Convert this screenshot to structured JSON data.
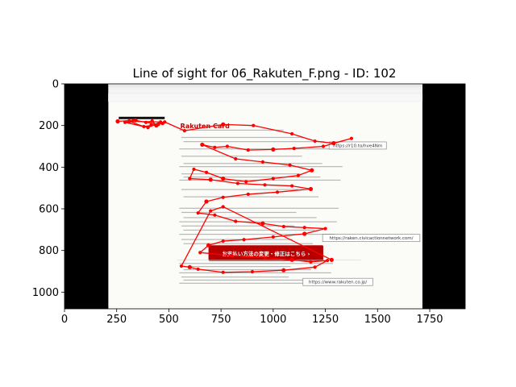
{
  "chart_data": {
    "type": "scatter",
    "title": "Line of sight for 06_Rakuten_F.png - ID: 102",
    "xlabel": "",
    "ylabel": "",
    "xlim": [
      0,
      1920
    ],
    "ylim": [
      1080,
      0
    ],
    "x_ticks": [
      0,
      250,
      500,
      750,
      1000,
      1250,
      1500,
      1750
    ],
    "y_ticks": [
      0,
      200,
      400,
      600,
      800,
      1000
    ],
    "grid": false,
    "line_color": "#ff0000",
    "marker_color": "#ff0000",
    "background_image": {
      "extent_x": [
        210,
        1715
      ],
      "extent_y": [
        0,
        1080
      ],
      "logo": "Rakuten Card",
      "button": "お支払い方法の変更・修正はこちら ›",
      "url_labels": [
        {
          "text": "https://r10.to/hve4Nm",
          "x": 1405,
          "y": 296
        },
        {
          "text": "https://raken.civicactionnetwork.com/",
          "x": 1470,
          "y": 740
        },
        {
          "text": "https://www.rakuten.co.jp/",
          "x": 1310,
          "y": 951
        }
      ]
    },
    "points": [
      [
        255,
        180
      ],
      [
        330,
        175
      ],
      [
        390,
        185
      ],
      [
        420,
        178
      ],
      [
        440,
        200
      ],
      [
        415,
        198
      ],
      [
        470,
        190
      ],
      [
        380,
        205
      ],
      [
        310,
        180
      ],
      [
        460,
        183
      ],
      [
        400,
        210
      ],
      [
        290,
        185
      ],
      [
        340,
        175
      ],
      [
        450,
        195
      ],
      [
        480,
        183
      ],
      [
        575,
        225
      ],
      [
        760,
        195
      ],
      [
        905,
        200
      ],
      [
        1090,
        240
      ],
      [
        1200,
        275
      ],
      [
        1290,
        285
      ],
      [
        1375,
        262
      ],
      [
        1240,
        300
      ],
      [
        1100,
        310
      ],
      [
        1000,
        315
      ],
      [
        880,
        318
      ],
      [
        780,
        300
      ],
      [
        720,
        305
      ],
      [
        660,
        292
      ],
      [
        820,
        360
      ],
      [
        950,
        375
      ],
      [
        1080,
        390
      ],
      [
        1185,
        415
      ],
      [
        1120,
        440
      ],
      [
        1000,
        455
      ],
      [
        870,
        470
      ],
      [
        760,
        455
      ],
      [
        680,
        425
      ],
      [
        620,
        410
      ],
      [
        600,
        455
      ],
      [
        700,
        460
      ],
      [
        830,
        478
      ],
      [
        960,
        485
      ],
      [
        1090,
        490
      ],
      [
        1180,
        505
      ],
      [
        1020,
        520
      ],
      [
        880,
        530
      ],
      [
        760,
        545
      ],
      [
        680,
        565
      ],
      [
        640,
        620
      ],
      [
        720,
        630
      ],
      [
        820,
        660
      ],
      [
        950,
        670
      ],
      [
        1050,
        685
      ],
      [
        1150,
        690
      ],
      [
        1250,
        695
      ],
      [
        1150,
        720
      ],
      [
        1000,
        735
      ],
      [
        860,
        748
      ],
      [
        760,
        755
      ],
      [
        690,
        775
      ],
      [
        650,
        810
      ],
      [
        800,
        825
      ],
      [
        960,
        835
      ],
      [
        1090,
        845
      ],
      [
        1180,
        855
      ],
      [
        1260,
        848
      ],
      [
        1200,
        880
      ],
      [
        1050,
        895
      ],
      [
        900,
        902
      ],
      [
        760,
        905
      ],
      [
        640,
        890
      ],
      [
        600,
        880
      ],
      [
        560,
        875
      ],
      [
        700,
        610
      ],
      [
        760,
        590
      ],
      [
        1280,
        845
      ]
    ]
  }
}
